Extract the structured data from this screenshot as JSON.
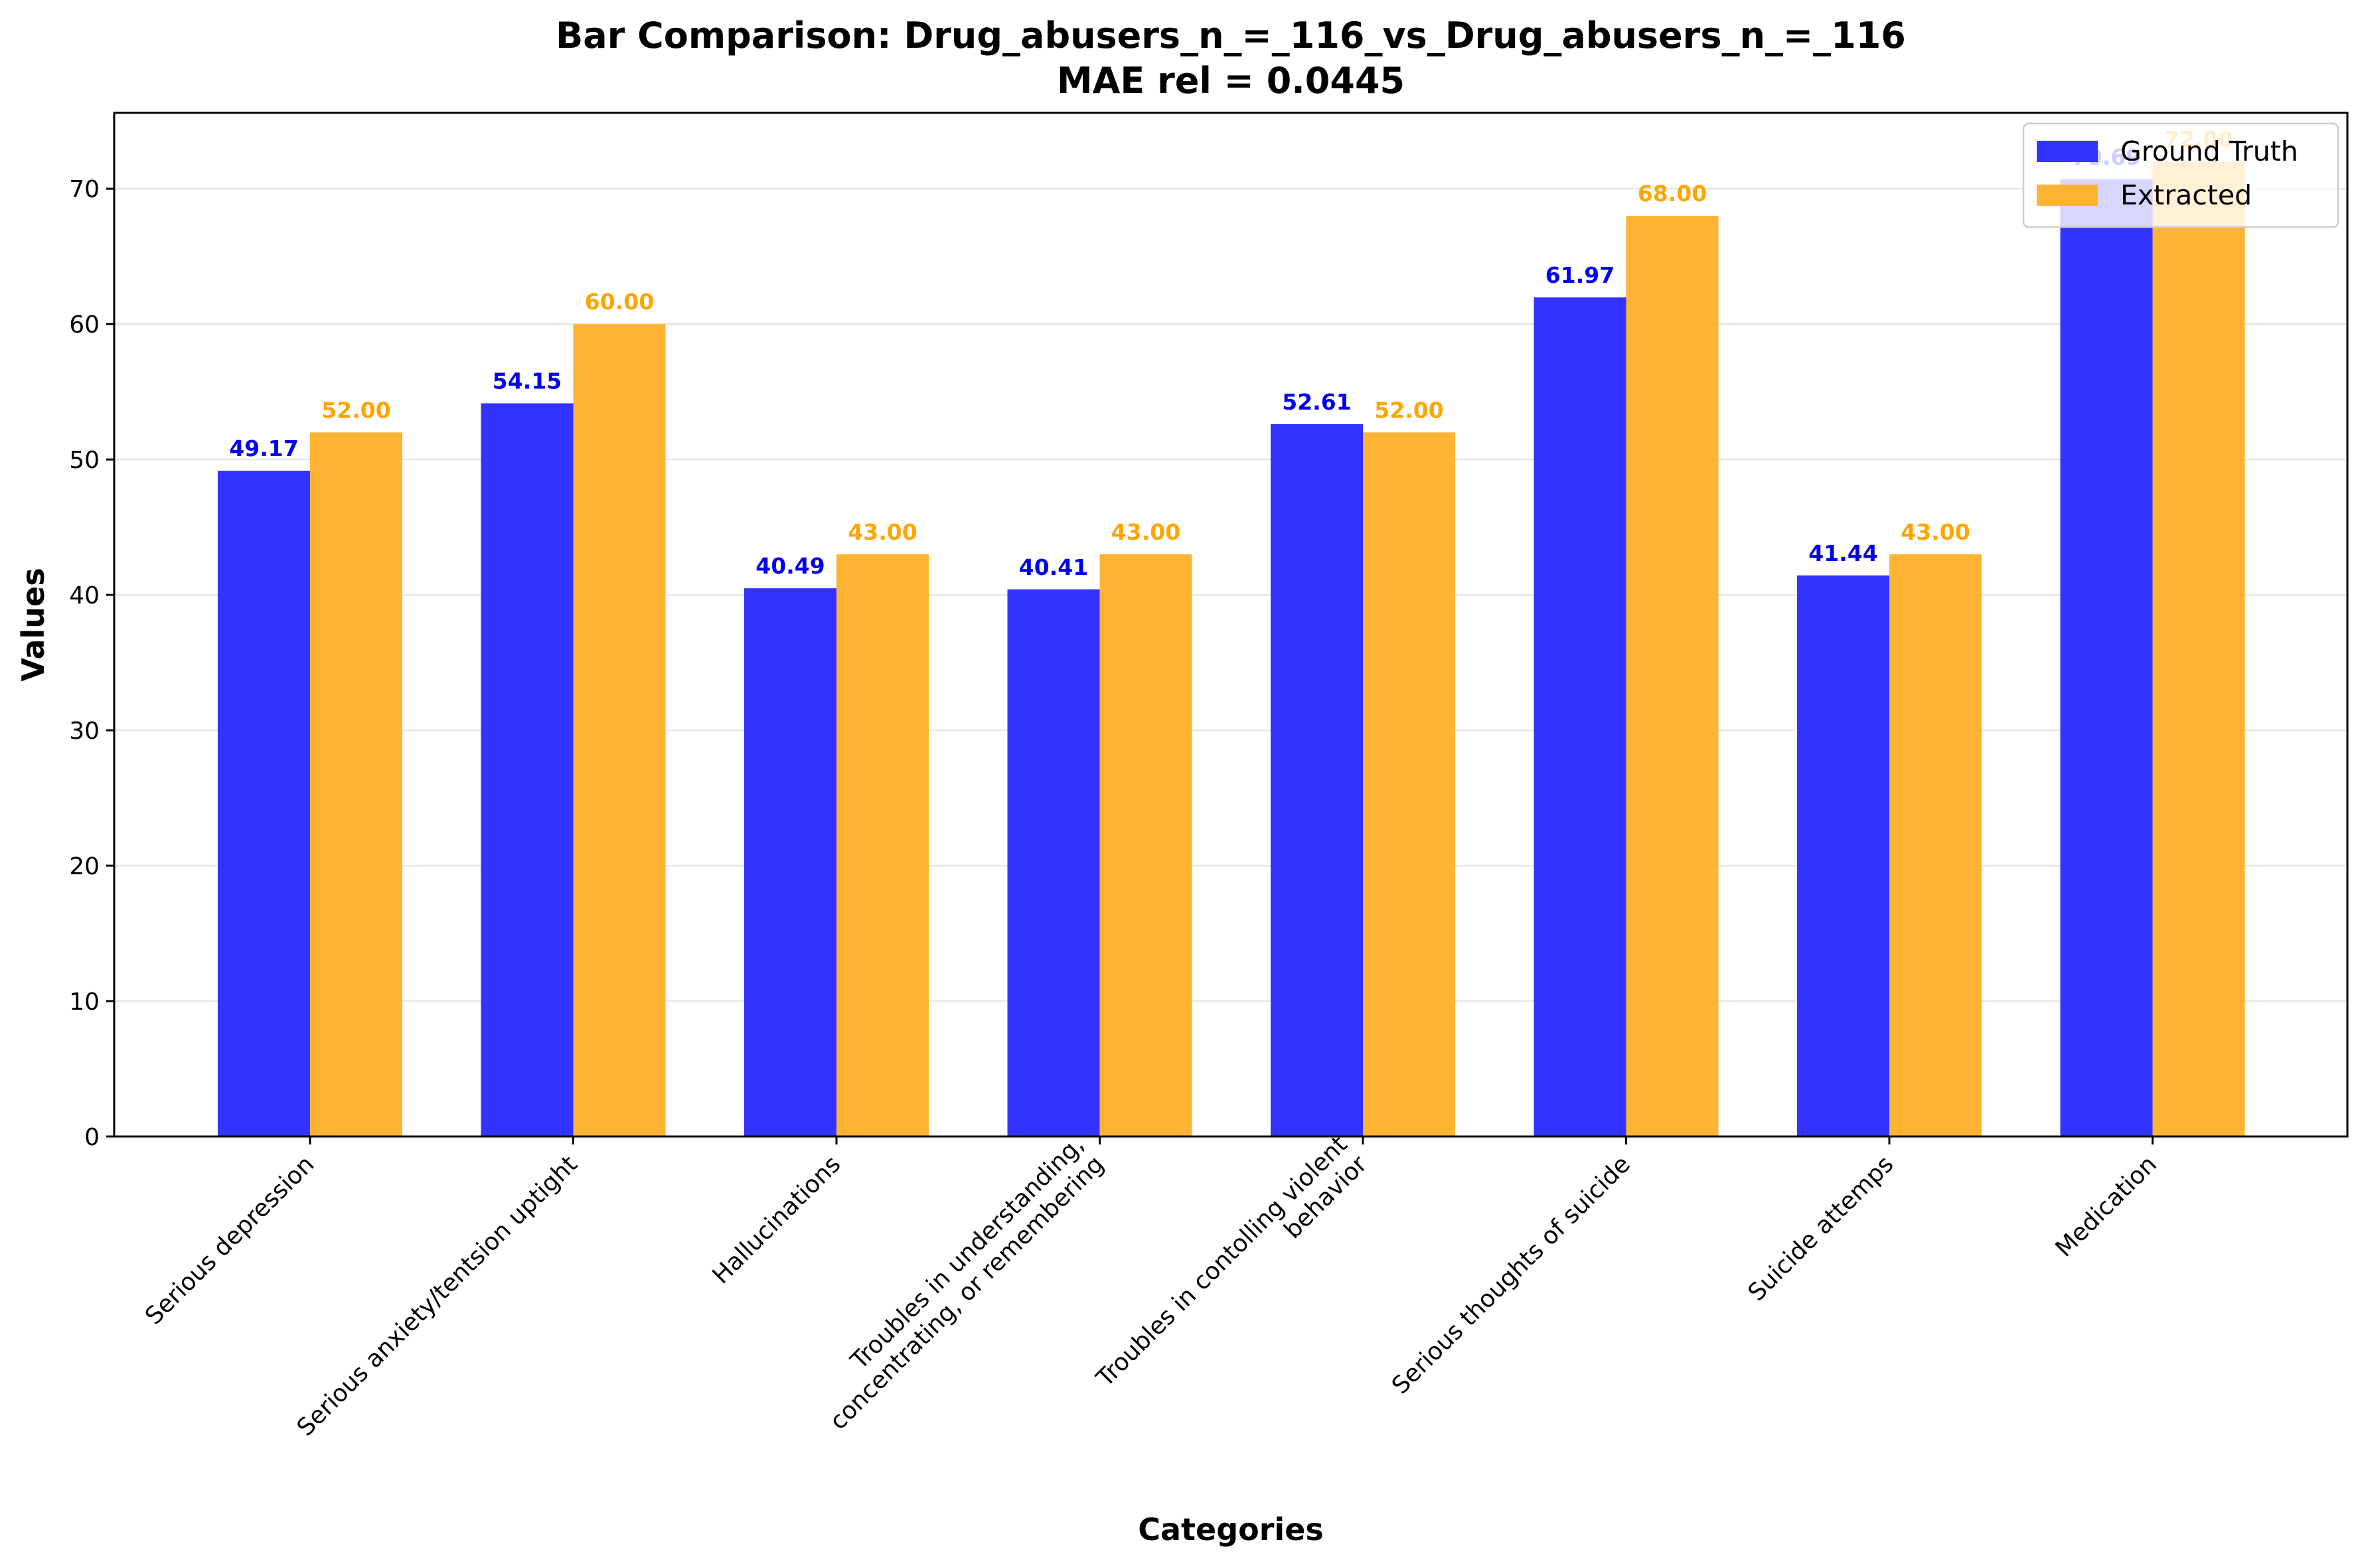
{
  "chart_data": {
    "type": "bar",
    "title_line1": "Bar Comparison: Drug_abusers_n_=_116_vs_Drug_abusers_n_=_116",
    "title_line2": "MAE rel = 0.0445",
    "xlabel": "Categories",
    "ylabel": "Values",
    "ylim": [
      0,
      75.6
    ],
    "yticks": [
      0,
      10,
      20,
      30,
      40,
      50,
      60,
      70
    ],
    "grid": true,
    "legend_placement": "top-right",
    "categories": [
      [
        "Serious depression"
      ],
      [
        "Serious anxiety/tentsion uptight"
      ],
      [
        "Hallucinations"
      ],
      [
        "Troubles in understanding,",
        "concentrating, or remembering"
      ],
      [
        "Troubles in contolling violent",
        "behavior"
      ],
      [
        "Serious thoughts of suicide"
      ],
      [
        "Suicide attemps"
      ],
      [
        "Medication"
      ]
    ],
    "series": [
      {
        "name": "Ground Truth",
        "color": "#3333ff",
        "label_color": "#0000ee",
        "values": [
          49.17,
          54.15,
          40.49,
          40.41,
          52.61,
          61.97,
          41.44,
          70.69
        ],
        "labels": [
          "49.17",
          "54.15",
          "40.49",
          "40.41",
          "52.61",
          "61.97",
          "41.44",
          "70.69"
        ]
      },
      {
        "name": "Extracted",
        "color": "#ffb333",
        "label_color": "#ffa500",
        "values": [
          52.0,
          60.0,
          43.0,
          43.0,
          52.0,
          68.0,
          43.0,
          72.0
        ],
        "labels": [
          "52.00",
          "60.00",
          "43.00",
          "43.00",
          "52.00",
          "68.00",
          "43.00",
          "72.00"
        ]
      }
    ]
  }
}
